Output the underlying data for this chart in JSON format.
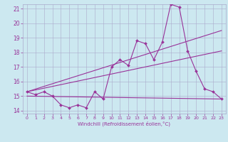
{
  "title": "",
  "xlabel": "Windchill (Refroidissement éolien,°C)",
  "bg_color": "#cce8f0",
  "line_color": "#993399",
  "grid_color": "#aaaacc",
  "xlim": [
    -0.5,
    23.5
  ],
  "ylim": [
    13.8,
    21.3
  ],
  "yticks": [
    14,
    15,
    16,
    17,
    18,
    19,
    20,
    21
  ],
  "xticks": [
    0,
    1,
    2,
    3,
    4,
    5,
    6,
    7,
    8,
    9,
    10,
    11,
    12,
    13,
    14,
    15,
    16,
    17,
    18,
    19,
    20,
    21,
    22,
    23
  ],
  "series": {
    "line1_x": [
      0,
      1,
      2,
      3,
      4,
      5,
      6,
      7,
      8,
      9,
      10,
      11,
      12,
      13,
      14,
      15,
      16,
      17,
      18,
      19,
      20,
      21,
      22,
      23
    ],
    "line1_y": [
      15.3,
      15.1,
      15.3,
      15.0,
      14.4,
      14.2,
      14.4,
      14.2,
      15.3,
      14.8,
      17.0,
      17.5,
      17.1,
      18.8,
      18.6,
      17.5,
      18.7,
      21.3,
      21.1,
      18.1,
      16.7,
      15.5,
      15.3,
      14.8
    ],
    "line2_x": [
      0,
      23
    ],
    "line2_y": [
      15.3,
      19.5
    ],
    "line3_x": [
      0,
      23
    ],
    "line3_y": [
      15.3,
      18.1
    ],
    "line4_x": [
      0,
      23
    ],
    "line4_y": [
      15.0,
      14.8
    ]
  }
}
